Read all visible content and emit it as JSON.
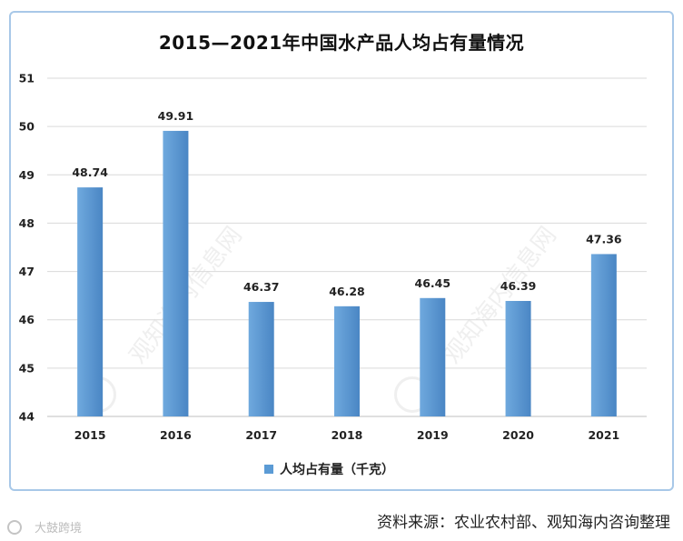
{
  "chart_data": {
    "type": "bar",
    "title": "2015—2021年中国水产品人均占有量情况",
    "categories": [
      "2015",
      "2016",
      "2017",
      "2018",
      "2019",
      "2020",
      "2021"
    ],
    "series": [
      {
        "name": "人均占有量（千克）",
        "values": [
          48.74,
          49.91,
          46.37,
          46.28,
          46.45,
          46.39,
          47.36
        ]
      }
    ],
    "xlabel": "",
    "ylabel": "",
    "ylim": [
      44,
      51
    ],
    "yticks": [
      44,
      45,
      46,
      47,
      48,
      49,
      50,
      51
    ],
    "grid": true,
    "legend": "bottom-center"
  },
  "colors": {
    "bar": "#5b9bd5",
    "bar_light": "#6fa9de",
    "bar_dark": "#4a86c4",
    "frame": "#a8c8e8",
    "grid": "#d9d9d9"
  },
  "source": "资料来源：农业农村部、观知海内咨询整理",
  "watermarks": {
    "center": "观知海内信息网",
    "corner": "大鼓跨境"
  }
}
